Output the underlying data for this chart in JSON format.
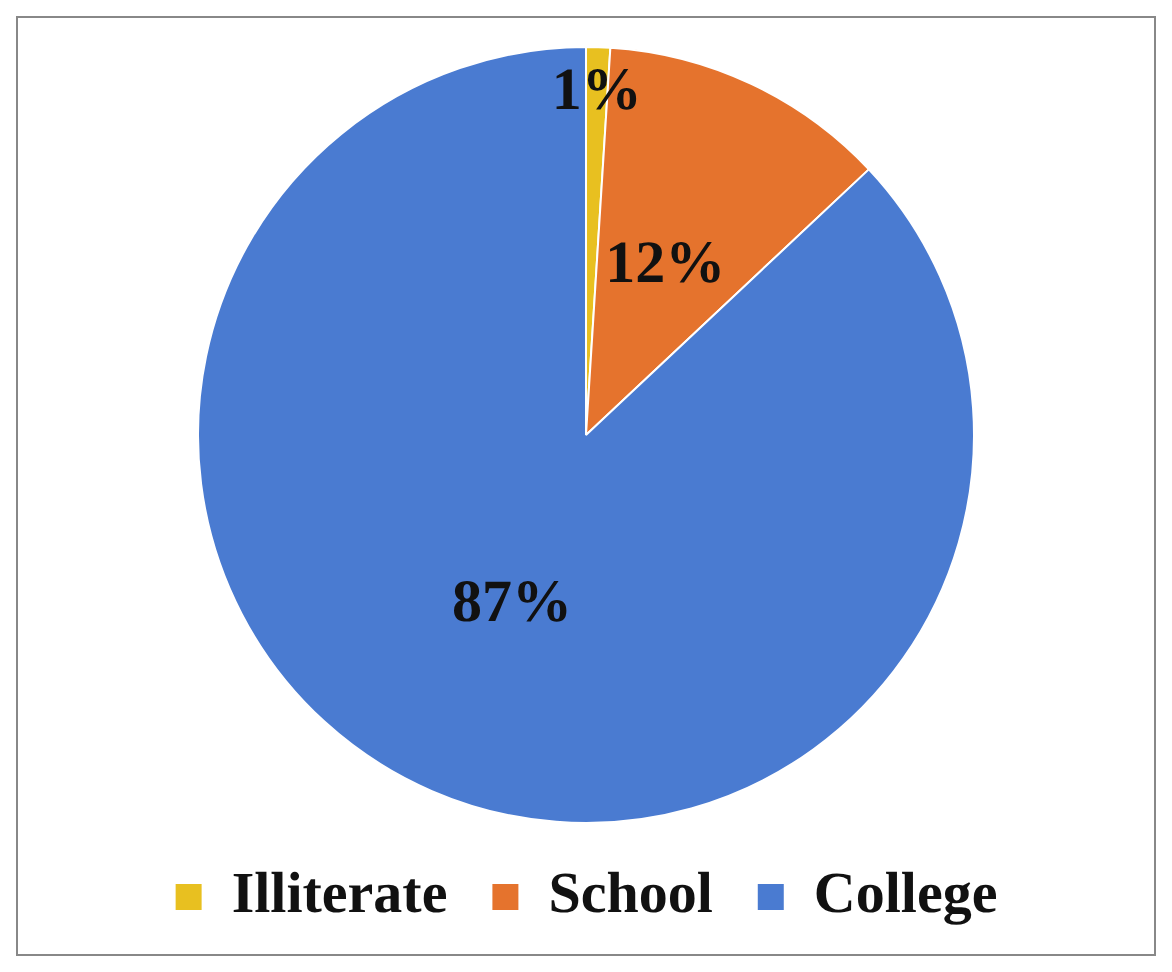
{
  "chart_data": {
    "type": "pie",
    "categories": [
      "Illiterate",
      "School",
      "College"
    ],
    "values": [
      1,
      12,
      87
    ],
    "colors": [
      "#e8c020",
      "#e5732d",
      "#4a7bd1"
    ],
    "value_labels": [
      "1%",
      "12%",
      "87%"
    ],
    "legend": "bottom"
  }
}
